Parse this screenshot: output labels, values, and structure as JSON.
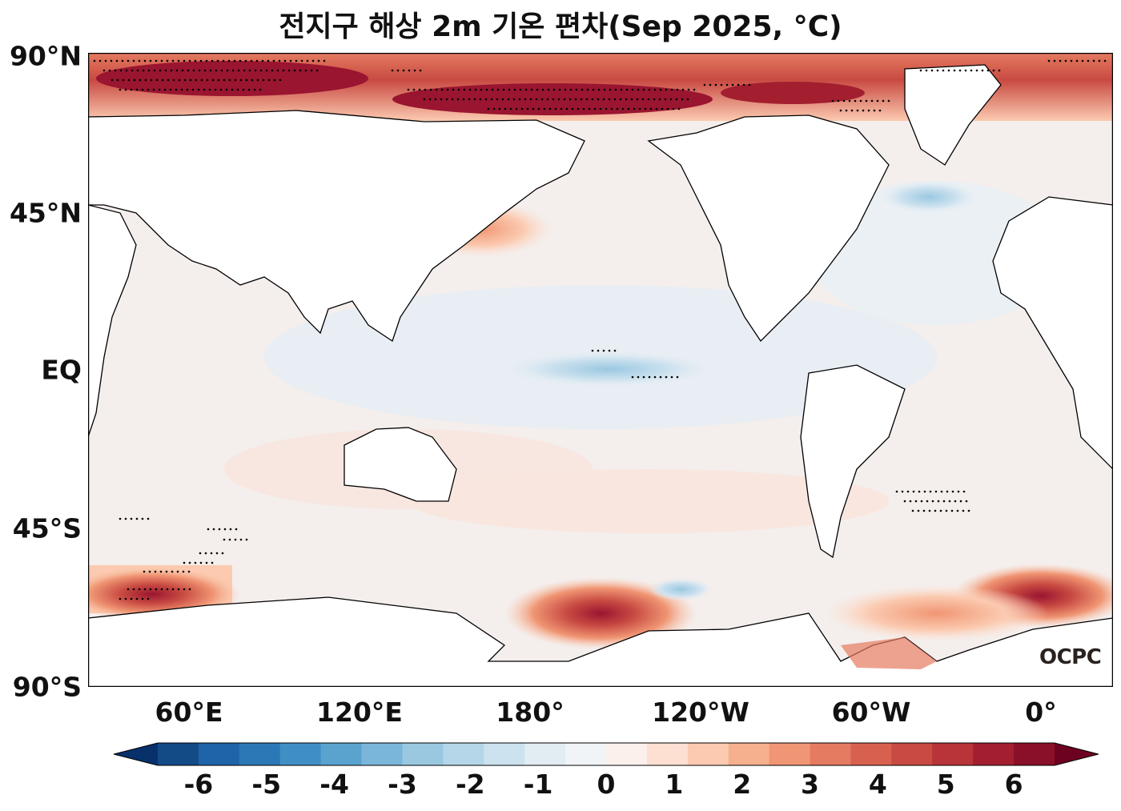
{
  "title": "전지구 해상 2m 기온 편차(Sep 2025, °C)",
  "latitude_labels": [
    "90°N",
    "45°N",
    "EQ",
    "45°S",
    "90°S"
  ],
  "longitude_labels": [
    "60°E",
    "120°E",
    "180°",
    "120°W",
    "60°W",
    "0°"
  ],
  "colorbar": {
    "tick_labels": [
      "-6",
      "-5",
      "-4",
      "-3",
      "-2",
      "-1",
      "0",
      "1",
      "2",
      "3",
      "4",
      "5",
      "6"
    ],
    "levels": [
      -6,
      -5.5,
      -5,
      -4.5,
      -4,
      -3.5,
      -3,
      -2.5,
      -2,
      -1.5,
      -1,
      -0.5,
      0,
      0.5,
      1,
      1.5,
      2,
      2.5,
      3,
      3.5,
      4,
      4.5,
      5,
      5.5,
      6
    ],
    "colors": [
      "#08306b",
      "#134b87",
      "#1f63a8",
      "#2c78b6",
      "#3f8fc5",
      "#5aa3cf",
      "#7ab6d9",
      "#9ac8e1",
      "#b4d6e8",
      "#cde2ef",
      "#e2ecf3",
      "#f1f4f6",
      "#fbf0ec",
      "#fde0d2",
      "#fbcab0",
      "#f6b08d",
      "#f09674",
      "#e57b60",
      "#d8604e",
      "#c84a42",
      "#b83438",
      "#a31f30",
      "#8a0f28",
      "#6d0220"
    ],
    "extend": "both"
  },
  "logo": "OCPC"
}
